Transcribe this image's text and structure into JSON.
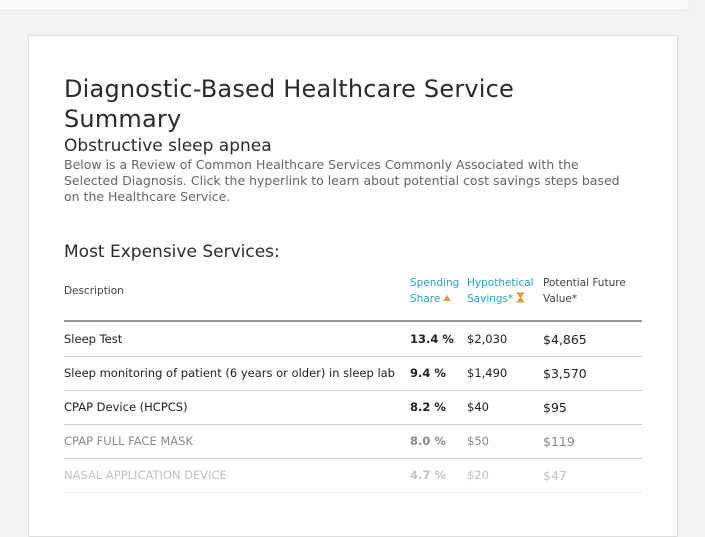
{
  "page": {
    "title": "Diagnostic-Based Healthcare Service Summary",
    "diagnosis": "Obstructive sleep apnea",
    "intro": "Below is a Review of Common Healthcare Services Commonly Associated with the Selected Diagnosis. Click the hyperlink to learn about potential cost savings steps based on the Healthcare Service."
  },
  "table": {
    "section_title": "Most Expensive Services:",
    "headers": {
      "description": "Description",
      "share_line1": "Spending",
      "share_line2": "Share",
      "savings_line1": "Hypothetical",
      "savings_line2": "Savings*",
      "future_line1": "Potential Future",
      "future_line2": "Value*"
    },
    "rows": [
      {
        "description": "Sleep Test",
        "share": "13.4 %",
        "savings": "$2,030",
        "future": "$4,865"
      },
      {
        "description": "Sleep monitoring of patient (6 years or older) in sleep lab",
        "share": "9.4 %",
        "savings": "$1,490",
        "future": "$3,570"
      },
      {
        "description": "CPAP Device (HCPCS)",
        "share": "8.2 %",
        "savings": "$40",
        "future": "$95"
      },
      {
        "description": "CPAP FULL FACE MASK",
        "share": "8.0 %",
        "savings": "$50",
        "future": "$119"
      },
      {
        "description": "NASAL APPLICATION DEVICE",
        "share": "4.7 %",
        "savings": "$20",
        "future": "$47"
      }
    ]
  },
  "colors": {
    "link": "#2a9fd6",
    "sort_accent": "#e8963a"
  },
  "icons": {
    "share_sort": "sort-ascending-icon",
    "savings_sort": "hourglass-icon"
  }
}
